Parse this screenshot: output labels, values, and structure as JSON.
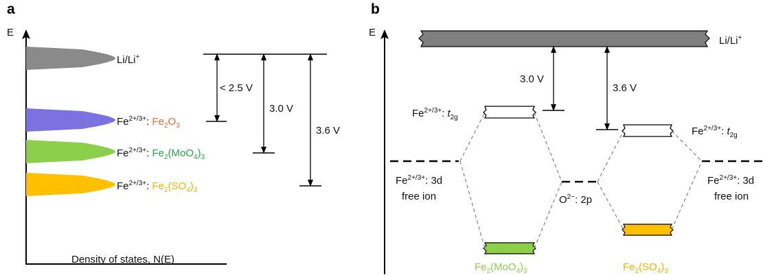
{
  "panel_a": {
    "letter": "a",
    "axis_y_label": "E",
    "axis_x_label": "Density of states, N(E)",
    "reference_label": {
      "main": "Li/Li",
      "sup": "+"
    },
    "bands": [
      {
        "name": "Li/Li+",
        "color": "#8a8a8a"
      },
      {
        "name": "Fe2O3",
        "color": "#7b72e0",
        "prefix": "Fe",
        "prefix_sup": "2+/3+",
        "colon": ": ",
        "compound": [
          {
            "t": "Fe"
          },
          {
            "t": "2",
            "sub": true
          },
          {
            "t": "O"
          },
          {
            "t": "3",
            "sub": true
          }
        ],
        "compound_color": "#e8683a"
      },
      {
        "name": "Fe2(MoO4)3",
        "color": "#8bcf4b",
        "prefix": "Fe",
        "prefix_sup": "2+/3+",
        "colon": ": ",
        "compound": [
          {
            "t": "Fe"
          },
          {
            "t": "2",
            "sub": true
          },
          {
            "t": "(MoO"
          },
          {
            "t": "4",
            "sub": true
          },
          {
            "t": ")"
          },
          {
            "t": "3",
            "sub": true
          }
        ],
        "compound_color": "#22a64a"
      },
      {
        "name": "Fe2(SO4)3",
        "color": "#ffc000",
        "prefix": "Fe",
        "prefix_sup": "2+/3+",
        "colon": ": ",
        "compound": [
          {
            "t": "Fe"
          },
          {
            "t": "2",
            "sub": true
          },
          {
            "t": "(SO"
          },
          {
            "t": "4",
            "sub": true
          },
          {
            "t": ")"
          },
          {
            "t": "3",
            "sub": true
          }
        ],
        "compound_color": "#f2b300"
      }
    ],
    "voltages": [
      {
        "text": "< 2.5 V",
        "color": "#e8683a"
      },
      {
        "text": "3.0 V",
        "color": "#22a64a"
      },
      {
        "text": "3.6 V",
        "color": "#f2b300"
      }
    ]
  },
  "panel_b": {
    "letter": "b",
    "axis_y_label": "E",
    "reference_label": {
      "main": "Li/Li",
      "sup": "+"
    },
    "voltages": [
      {
        "text": "3.0 V",
        "color": "#8bcf4b"
      },
      {
        "text": "3.6 V",
        "color": "#f2b300"
      }
    ],
    "t2g_left": {
      "main": "Fe",
      "sup": "2+/3+",
      "rest": ": ",
      "t": "t",
      "sub": "2g"
    },
    "t2g_right": {
      "main": "Fe",
      "sup": "2+/3+",
      "rest": ": ",
      "t": "t",
      "sub": "2g"
    },
    "free_ion_left": {
      "main": "Fe",
      "sup": "2+/3+",
      "rest": ": 3d",
      "line2": "free ion"
    },
    "free_ion_right": {
      "main": "Fe",
      "sup": "2+/3+",
      "rest": ": 3d",
      "line2": "free ion"
    },
    "oxygen_label": {
      "main": "O",
      "sup": "2−",
      "rest": ": 2p"
    },
    "compound_left": {
      "parts": [
        {
          "t": "Fe"
        },
        {
          "t": "2",
          "sub": true
        },
        {
          "t": "(MoO"
        },
        {
          "t": "4",
          "sub": true
        },
        {
          "t": ")"
        },
        {
          "t": "3",
          "sub": true
        }
      ],
      "color": "#8bcf4b"
    },
    "compound_right": {
      "parts": [
        {
          "t": "Fe"
        },
        {
          "t": "2",
          "sub": true
        },
        {
          "t": "(SO"
        },
        {
          "t": "4",
          "sub": true
        },
        {
          "t": ")"
        },
        {
          "t": "3",
          "sub": true
        }
      ],
      "color": "#f2b300"
    },
    "colors": {
      "li_band": "#7f7f7f",
      "green_band": "#8bcf4b",
      "yellow_band": "#ffc000"
    }
  }
}
